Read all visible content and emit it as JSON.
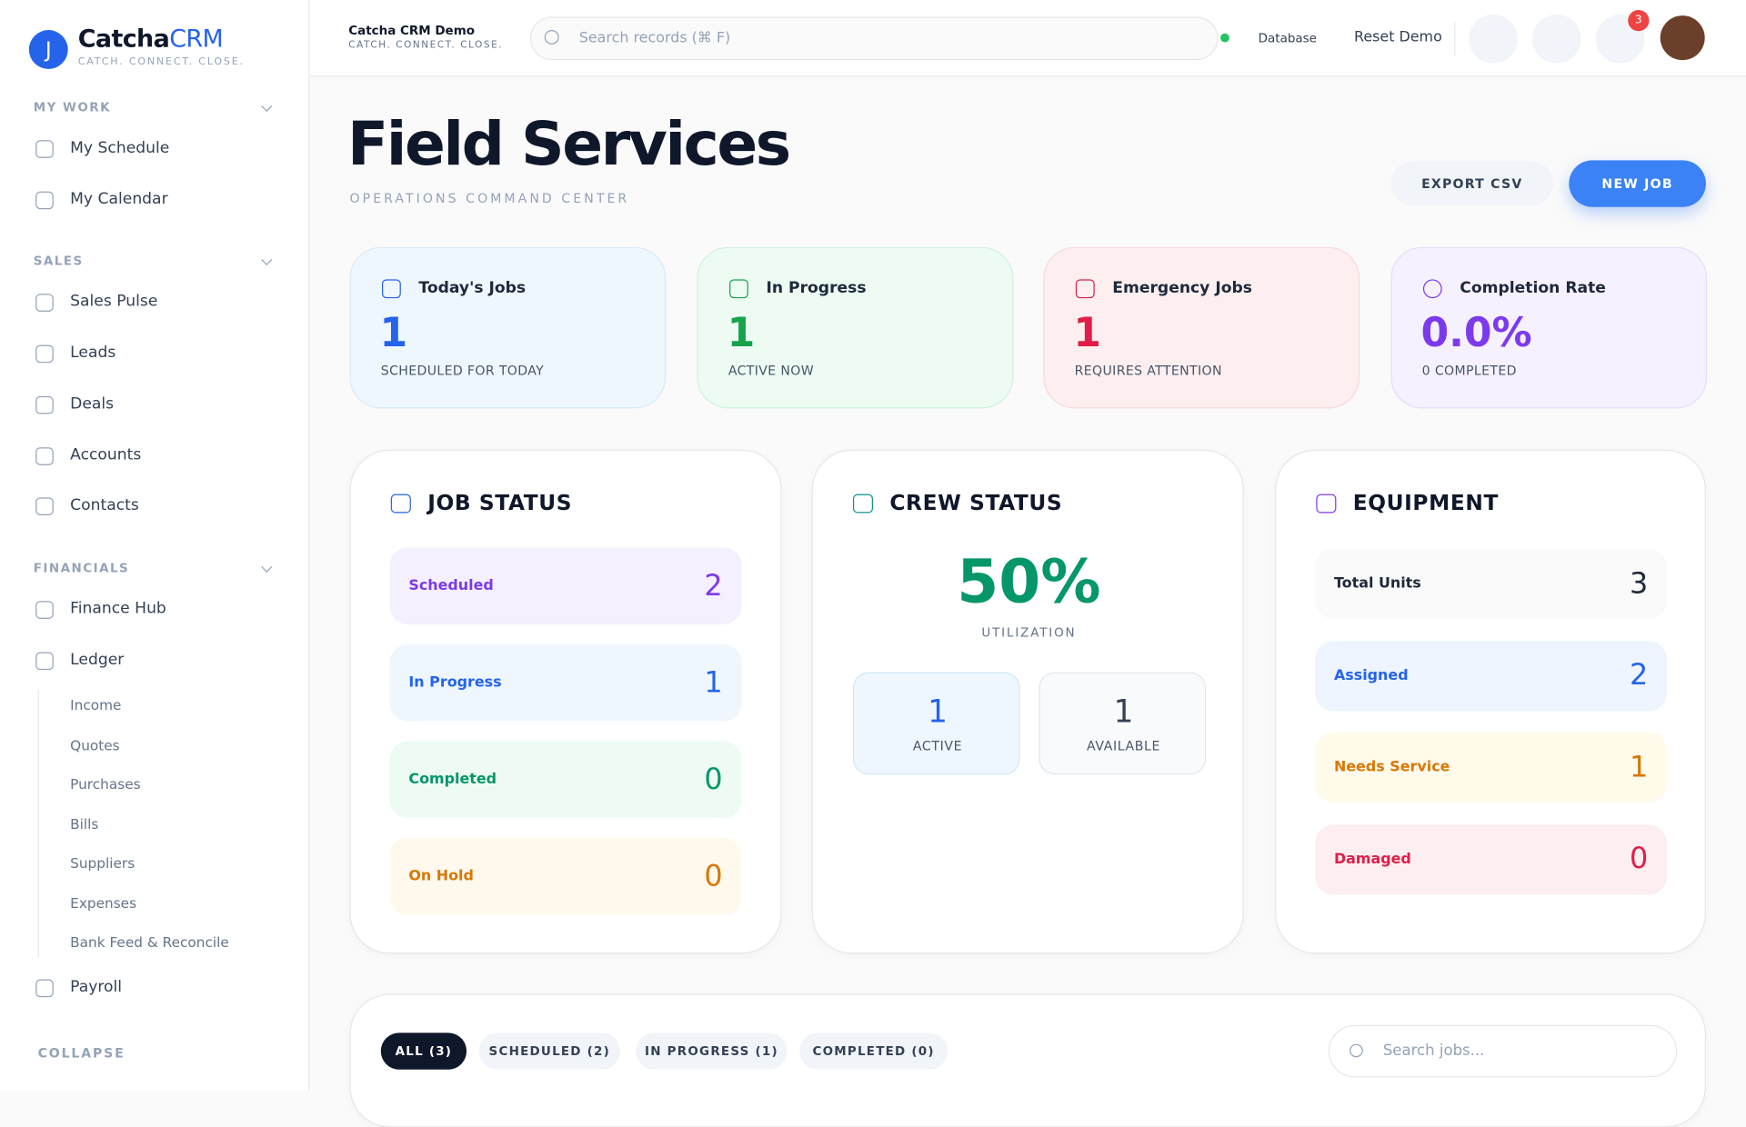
{
  "brand": {
    "avatar_letter": "J",
    "name_prefix": "Catcha",
    "name_suffix": "CRM",
    "tagline": "CATCH. CONNECT. CLOSE."
  },
  "sidebar": {
    "sections": [
      {
        "title": "MY WORK",
        "items": [
          "My Schedule",
          "My Calendar"
        ]
      },
      {
        "title": "SALES",
        "items": [
          "Sales Pulse",
          "Leads",
          "Deals",
          "Accounts",
          "Contacts"
        ]
      },
      {
        "title": "FINANCIALS",
        "items": [
          "Finance Hub",
          "Ledger"
        ]
      }
    ],
    "ledger_items": [
      "Income",
      "Quotes",
      "Purchases",
      "Bills",
      "Suppliers",
      "Expenses",
      "Bank Feed & Reconcile"
    ],
    "payroll": "Payroll",
    "collapse": "COLLAPSE"
  },
  "topbar": {
    "org_name": "Catcha CRM Demo",
    "org_tagline": "CATCH. CONNECT. CLOSE.",
    "search_placeholder": "Search records (⌘ F)",
    "database": "Database",
    "reset": "Reset Demo",
    "notifications": "3"
  },
  "header": {
    "title": "Field Services",
    "subtitle": "OPERATIONS COMMAND CENTER",
    "export": "EXPORT CSV",
    "new_job": "NEW JOB"
  },
  "kpis": [
    {
      "label": "Today's Jobs",
      "value": "1",
      "caption": "SCHEDULED FOR TODAY"
    },
    {
      "label": "In Progress",
      "value": "1",
      "caption": "ACTIVE NOW"
    },
    {
      "label": "Emergency Jobs",
      "value": "1",
      "caption": "REQUIRES ATTENTION"
    },
    {
      "label": "Completion Rate",
      "value": "0.0%",
      "caption": "0 COMPLETED"
    }
  ],
  "job_status": {
    "title": "JOB STATUS",
    "rows": [
      {
        "label": "Scheduled",
        "value": "2"
      },
      {
        "label": "In Progress",
        "value": "1"
      },
      {
        "label": "Completed",
        "value": "0"
      },
      {
        "label": "On Hold",
        "value": "0"
      }
    ]
  },
  "crew_status": {
    "title": "CREW STATUS",
    "utilization": "50%",
    "utilization_label": "UTILIZATION",
    "boxes": [
      {
        "value": "1",
        "label": "ACTIVE"
      },
      {
        "value": "1",
        "label": "AVAILABLE"
      }
    ]
  },
  "equipment": {
    "title": "EQUIPMENT",
    "rows": [
      {
        "label": "Total Units",
        "value": "3"
      },
      {
        "label": "Assigned",
        "value": "2"
      },
      {
        "label": "Needs Service",
        "value": "1"
      },
      {
        "label": "Damaged",
        "value": "0"
      }
    ]
  },
  "jobs": {
    "tabs": [
      "ALL (3)",
      "SCHEDULED (2)",
      "IN PROGRESS (1)",
      "COMPLETED (0)"
    ],
    "search_placeholder": "Search jobs..."
  }
}
